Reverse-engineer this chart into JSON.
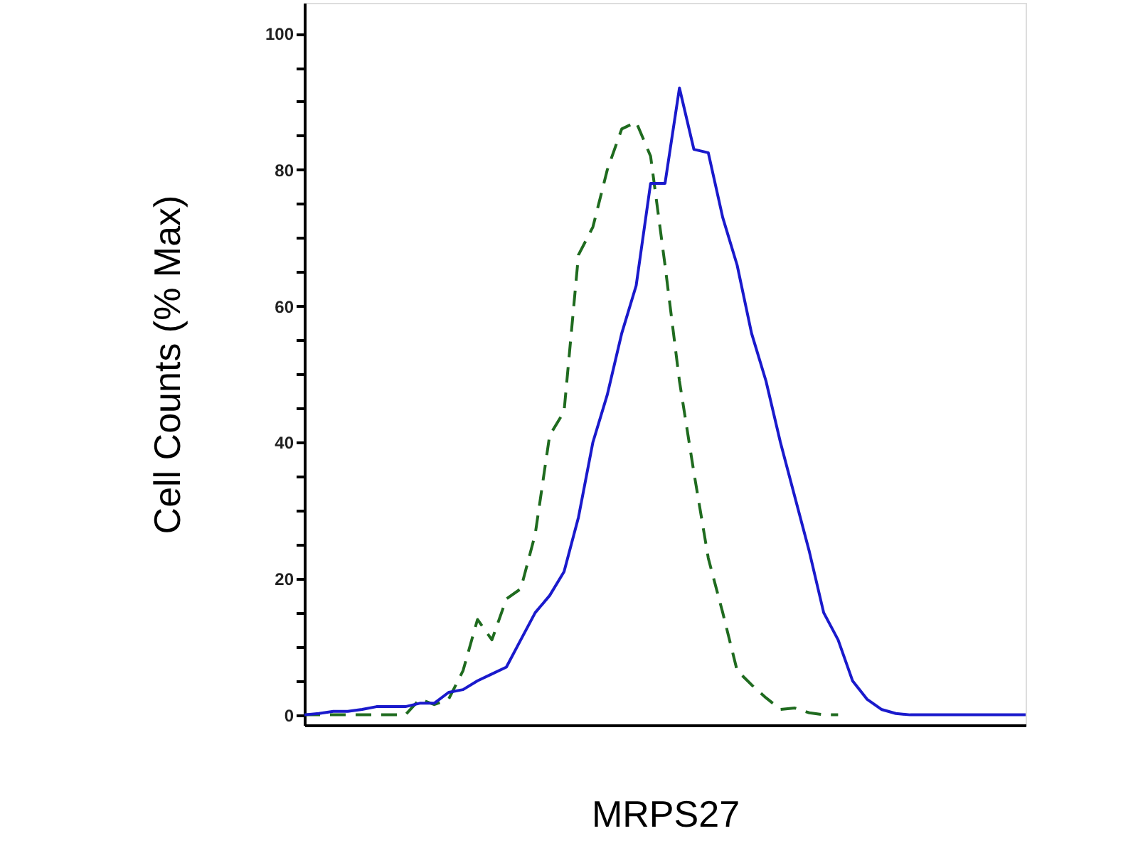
{
  "chart_data": {
    "type": "line",
    "xlabel": "MRPS27",
    "ylabel": "Cell Counts (% Max)",
    "categories": [
      null,
      null,
      null,
      null,
      null,
      null,
      null,
      null,
      null,
      null,
      null,
      null,
      null,
      null,
      null,
      null,
      null,
      null,
      null,
      null,
      null,
      null,
      null,
      null,
      null,
      null,
      null,
      null,
      null,
      null,
      null,
      null,
      null,
      null,
      null,
      null,
      null,
      null,
      null,
      null,
      null,
      null,
      null,
      null,
      null,
      null,
      null,
      null,
      null,
      null,
      null
    ],
    "ylim": [
      -1.5,
      104.5
    ],
    "yticks": [
      0,
      {
        "value": 5,
        "label": null
      },
      {
        "value": 10,
        "label": null
      },
      {
        "value": 15,
        "label": null
      },
      20,
      {
        "value": 25,
        "label": null
      },
      {
        "value": 30,
        "label": null
      },
      {
        "value": 35,
        "label": null
      },
      40,
      {
        "value": 45,
        "label": null
      },
      {
        "value": 50,
        "label": null
      },
      {
        "value": 55,
        "label": null
      },
      60,
      {
        "value": 65,
        "label": null
      },
      {
        "value": 70,
        "label": null
      },
      {
        "value": 75,
        "label": null
      },
      80,
      {
        "value": 85,
        "label": null
      },
      {
        "value": 90,
        "label": null
      },
      {
        "value": 95,
        "label": null
      },
      100
    ],
    "tick_labels": "y",
    "grid": false,
    "series": [
      {
        "color": "#1f6b1f",
        "line_style": "dashed",
        "values": [
          0,
          0,
          0,
          0,
          0,
          0,
          0,
          0,
          2.3,
          1.5,
          2.3,
          6.5,
          14,
          11,
          17,
          18.5,
          26.5,
          41,
          44.5,
          67.5,
          71.6,
          80,
          86,
          87,
          82,
          66,
          49,
          35.6,
          23,
          15,
          6.5,
          4.4,
          2.5,
          0.8,
          1,
          0.3,
          0,
          0,
          null,
          null,
          null,
          null,
          null,
          null,
          null,
          null,
          null,
          null,
          null,
          null,
          null
        ]
      },
      {
        "color": "#1a1acc",
        "line_style": "solid",
        "values": [
          0,
          0.2,
          0.5,
          0.5,
          0.8,
          1.2,
          1.2,
          1.2,
          1.7,
          1.7,
          3.3,
          3.7,
          5,
          6,
          7,
          11,
          15,
          17.5,
          21,
          29,
          40,
          47,
          56,
          63,
          78,
          78,
          92,
          83,
          82.5,
          73,
          66,
          56,
          49,
          40,
          32,
          24,
          15,
          11,
          5,
          2.3,
          0.8,
          0.2,
          0,
          0,
          0,
          0,
          0,
          0,
          0,
          0,
          0
        ]
      }
    ]
  }
}
